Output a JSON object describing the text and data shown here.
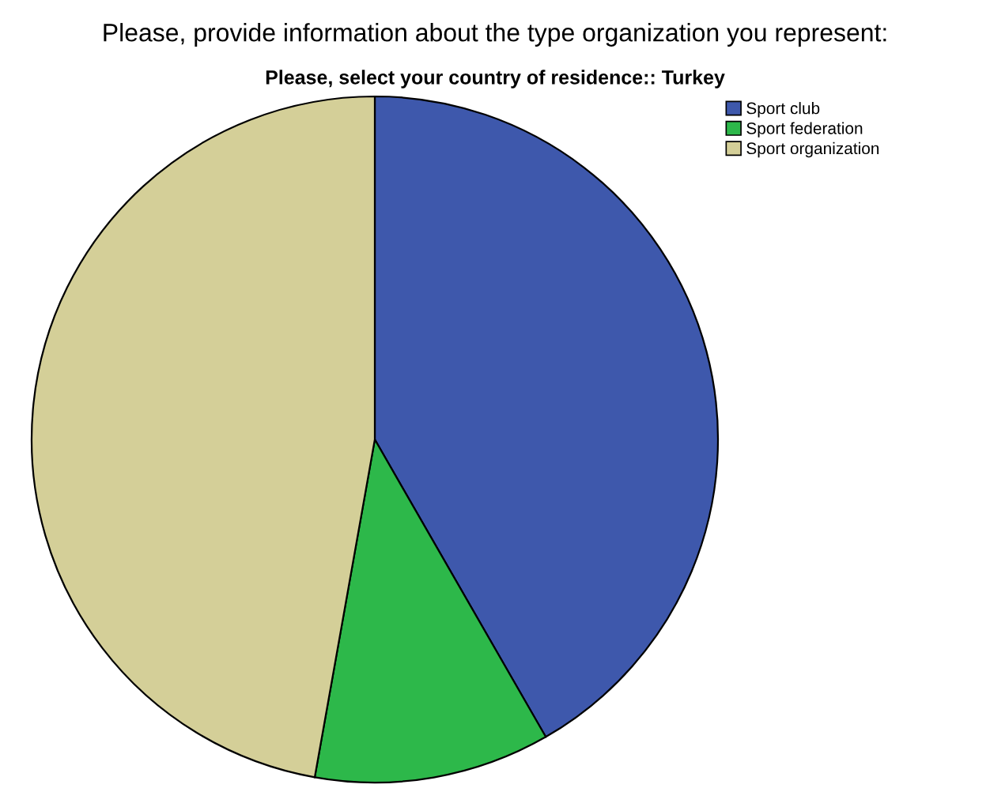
{
  "chart_data": {
    "type": "pie",
    "title": "Please, provide information about the type organization you represent:",
    "subtitle": "Please, select your country of residence:: Turkey",
    "categories": [
      "Sport club",
      "Sport federation",
      "Sport organization"
    ],
    "values": [
      41.7,
      11.1,
      47.2
    ],
    "colors": [
      "#3e58ac",
      "#2db84a",
      "#d4cf98"
    ],
    "legend": "top right"
  }
}
